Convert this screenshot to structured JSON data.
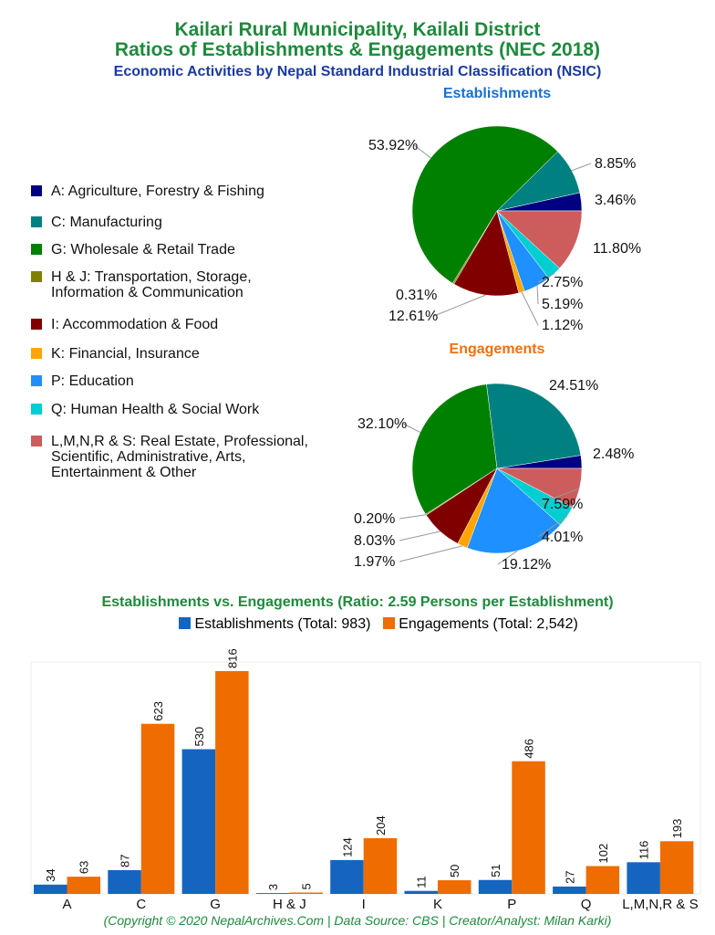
{
  "title": {
    "line1": "Kailari Rural Municipality, Kailali District",
    "line2": "Ratios of Establishments & Engagements (NEC 2018)",
    "subtitle": "Economic Activities by Nepal Standard Industrial Classification (NSIC)"
  },
  "legend": [
    {
      "label": "A: Agriculture, Forestry & Fishing",
      "color": "#000080"
    },
    {
      "label": "C: Manufacturing",
      "color": "#008080"
    },
    {
      "label": "G: Wholesale & Retail Trade",
      "color": "#008000"
    },
    {
      "label": "H & J: Transportation, Storage,\nInformation & Communication",
      "color": "#808000"
    },
    {
      "label": "I: Accommodation & Food",
      "color": "#800000"
    },
    {
      "label": "K: Financial, Insurance",
      "color": "#FFA500"
    },
    {
      "label": "P: Education",
      "color": "#1E90FF"
    },
    {
      "label": "Q: Human Health & Social Work",
      "color": "#00CED1"
    },
    {
      "label": "L,M,N,R & S: Real Estate, Professional,\nScientific, Administrative, Arts,\nEntertainment & Other",
      "color": "#CD5C5C"
    }
  ],
  "chart_data": [
    {
      "type": "pie",
      "title": "Establishments",
      "title_color": "#1a6fd0",
      "categories": [
        "A",
        "C",
        "G",
        "H & J",
        "I",
        "K",
        "P",
        "Q",
        "L,M,N,R & S"
      ],
      "values": [
        3.46,
        8.85,
        53.92,
        0.31,
        12.61,
        1.12,
        5.19,
        2.75,
        11.8
      ],
      "labels": [
        "3.46%",
        "8.85%",
        "53.92%",
        "0.31%",
        "12.61%",
        "1.12%",
        "5.19%",
        "2.75%",
        "11.80%"
      ]
    },
    {
      "type": "pie",
      "title": "Engagements",
      "title_color": "#f07010",
      "categories": [
        "A",
        "C",
        "G",
        "H & J",
        "I",
        "K",
        "P",
        "Q",
        "L,M,N,R & S"
      ],
      "values": [
        2.48,
        24.51,
        32.1,
        0.2,
        8.03,
        1.97,
        19.12,
        4.01,
        7.59
      ],
      "labels": [
        "2.48%",
        "24.51%",
        "32.10%",
        "0.20%",
        "8.03%",
        "1.97%",
        "19.12%",
        "4.01%",
        "7.59%"
      ]
    },
    {
      "type": "bar",
      "title": "Establishments vs. Engagements (Ratio: 2.59 Persons per Establishment)",
      "categories": [
        "A",
        "C",
        "G",
        "H & J",
        "I",
        "K",
        "P",
        "Q",
        "L,M,N,R & S"
      ],
      "series": [
        {
          "name": "Establishments (Total: 983)",
          "color": "#1565c0",
          "values": [
            34,
            87,
            530,
            3,
            124,
            11,
            51,
            27,
            116
          ]
        },
        {
          "name": "Engagements (Total: 2,542)",
          "color": "#ef6c00",
          "values": [
            63,
            623,
            816,
            5,
            204,
            50,
            486,
            102,
            193
          ]
        }
      ],
      "ylim": [
        0,
        850
      ],
      "grid": false
    }
  ],
  "footer": "(Copyright © 2020 NepalArchives.Com | Data Source: CBS | Creator/Analyst: Milan Karki)"
}
